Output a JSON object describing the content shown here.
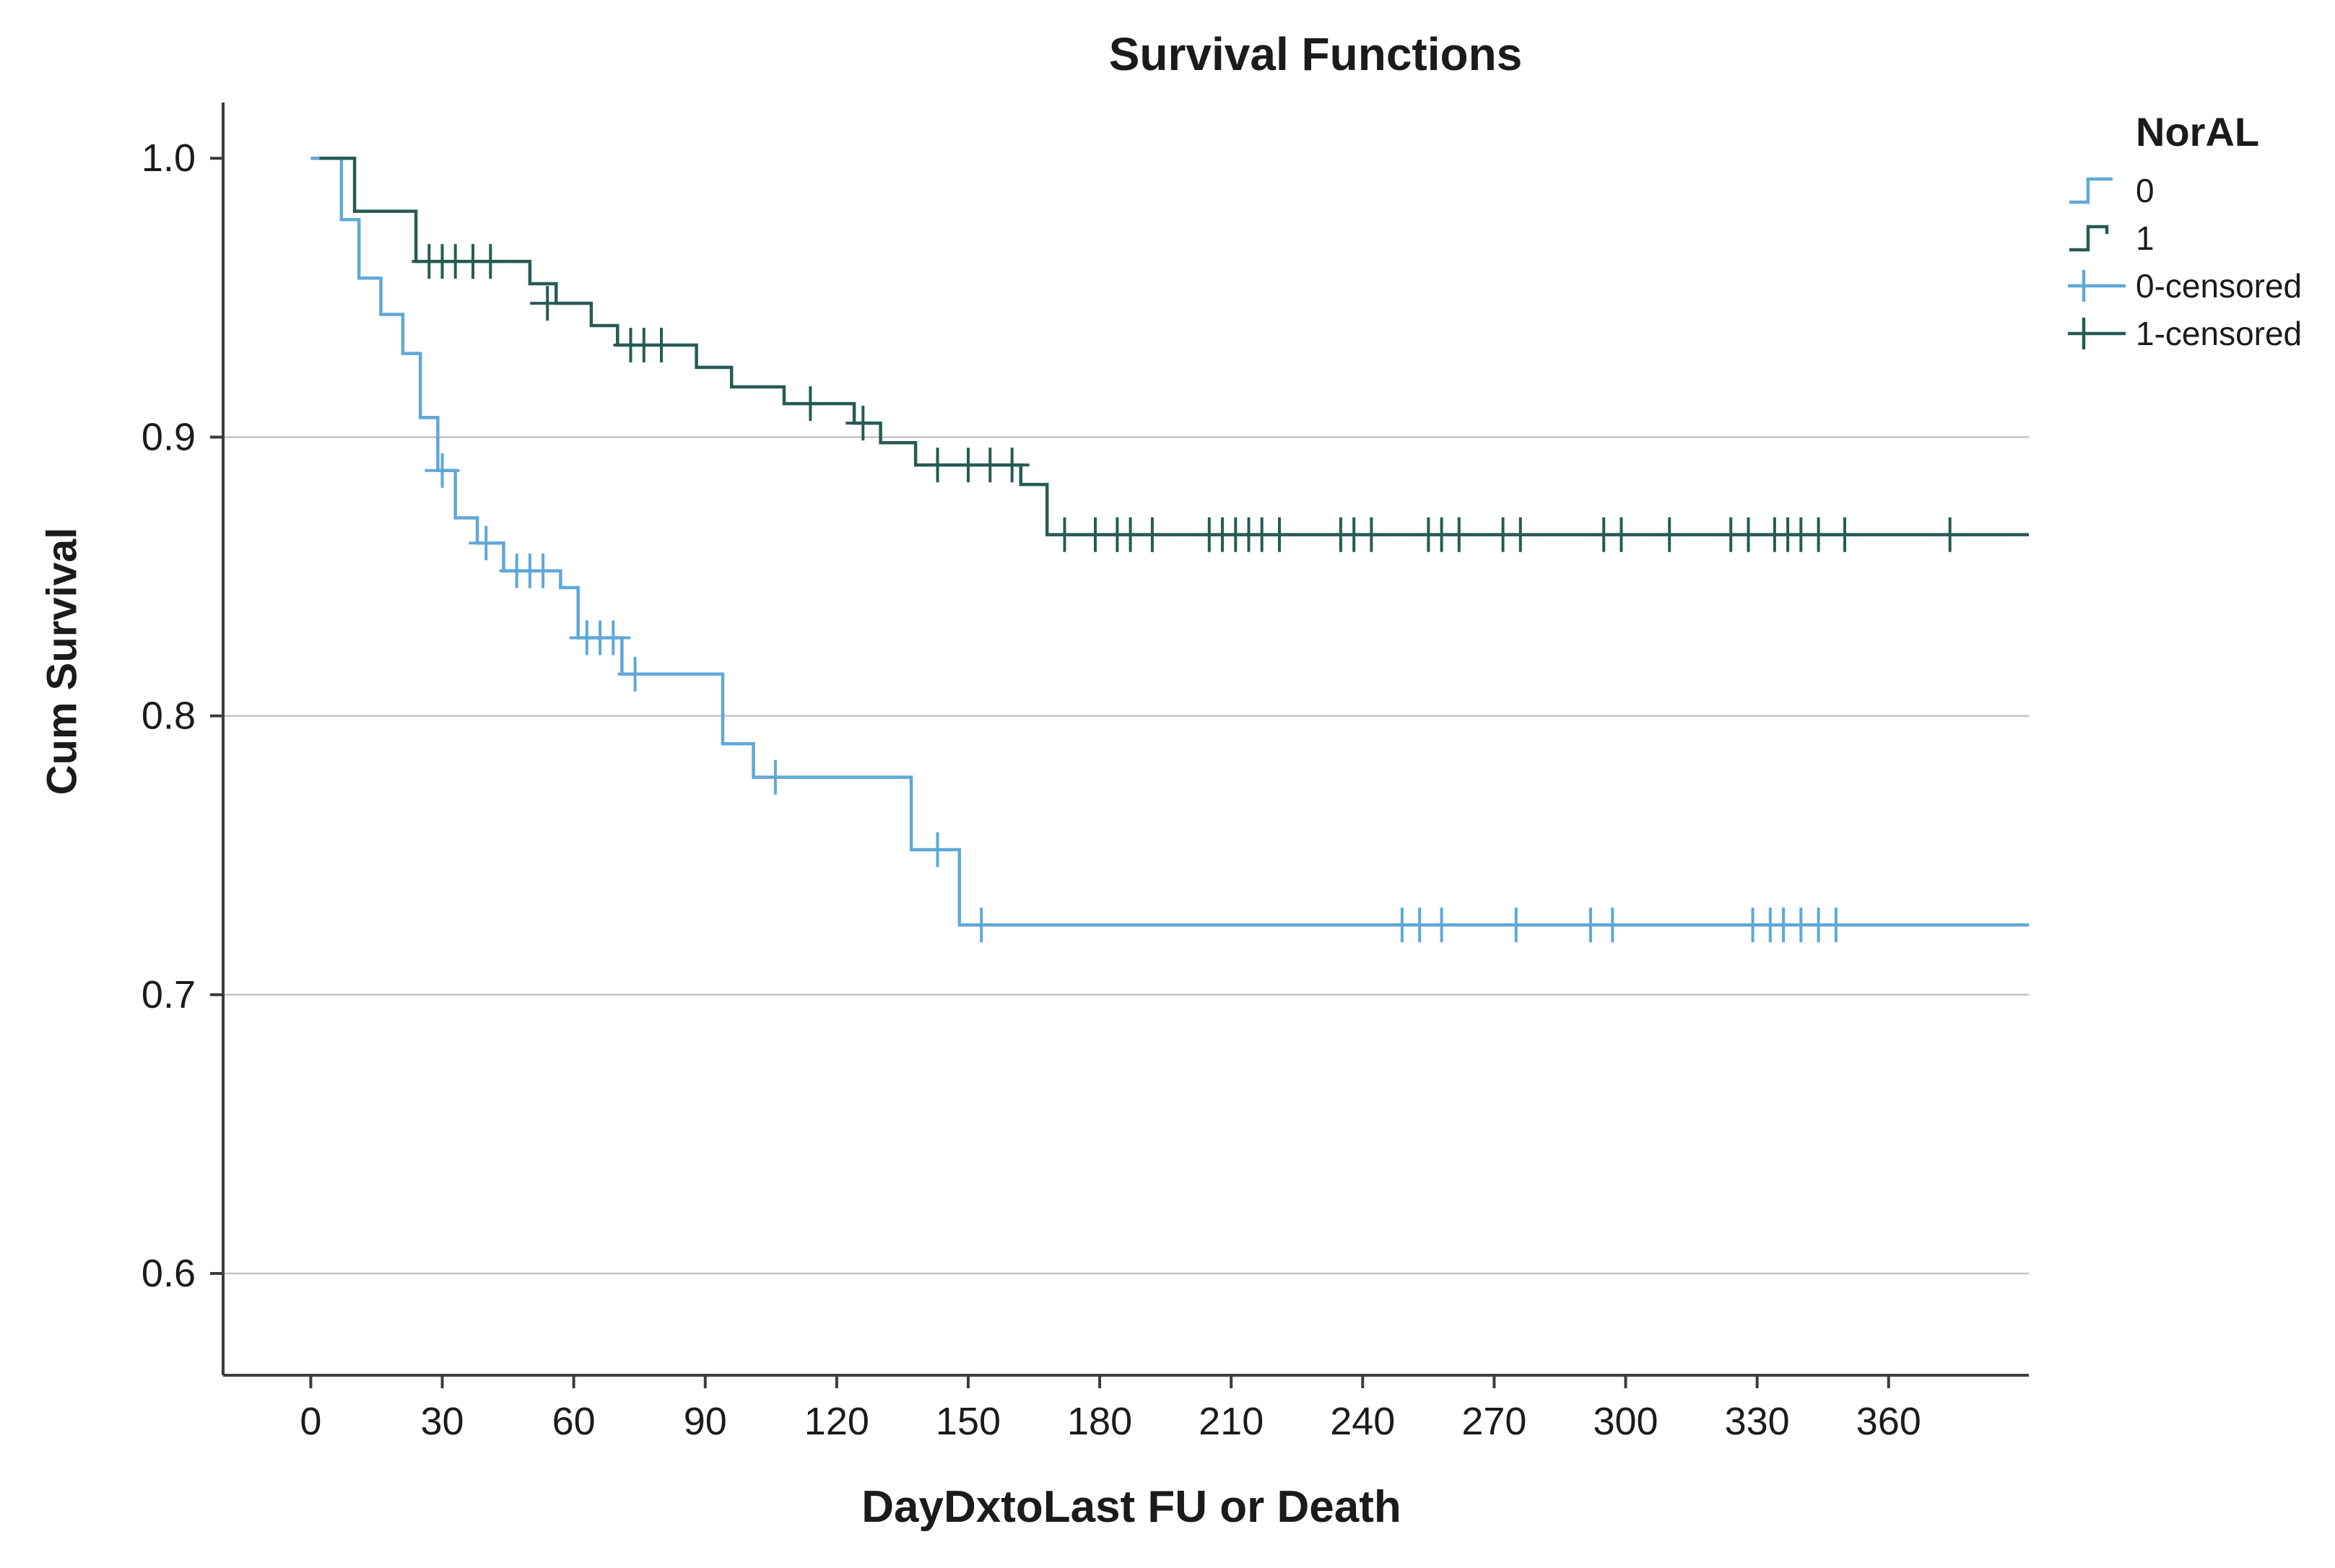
{
  "chart_data": {
    "type": "line",
    "subtype": "kaplan-meier-step-survival",
    "title": "Survival Functions",
    "xlabel": "DayDxtoLast FU or Death",
    "ylabel": "Cum Survival",
    "grid": "horizontal gridlines only",
    "x_domain": [
      -20,
      392
    ],
    "y_domain": [
      0.5635,
      1.02
    ],
    "x_ticks": [
      0,
      30,
      60,
      90,
      120,
      150,
      180,
      210,
      240,
      270,
      300,
      330,
      360
    ],
    "x_tick_labels": [
      "0",
      "30",
      "60",
      "90",
      "120",
      "150",
      "180",
      "210",
      "240",
      "270",
      "300",
      "330",
      "360"
    ],
    "y_ticks": [
      1.0,
      0.9,
      0.8,
      0.7,
      0.6
    ],
    "y_tick_labels": [
      "1.0",
      "0.9",
      "0.8",
      "0.7",
      "0.6"
    ],
    "gridlines_y": [
      0.9,
      0.8,
      0.7,
      0.6
    ],
    "legend": {
      "title": "NorAL",
      "position": "top-right outside plot",
      "entries": [
        {
          "label": "0",
          "series": "0",
          "glyph": "step-line"
        },
        {
          "label": "1",
          "series": "1",
          "glyph": "step-line"
        },
        {
          "label": "0-censored",
          "series": "0",
          "glyph": "plus-on-line"
        },
        {
          "label": "1-censored",
          "series": "1",
          "glyph": "plus-on-line"
        }
      ]
    },
    "series": [
      {
        "name": "0",
        "color": "#5fa8d8",
        "points": [
          [
            0,
            1.0
          ],
          [
            7,
            1.0
          ],
          [
            7,
            0.978
          ],
          [
            11,
            0.978
          ],
          [
            11,
            0.957
          ],
          [
            16,
            0.957
          ],
          [
            16,
            0.944
          ],
          [
            21,
            0.944
          ],
          [
            21,
            0.93
          ],
          [
            25,
            0.93
          ],
          [
            25,
            0.907
          ],
          [
            29,
            0.907
          ],
          [
            29,
            0.888
          ],
          [
            33,
            0.888
          ],
          [
            33,
            0.871
          ],
          [
            38,
            0.871
          ],
          [
            38,
            0.862
          ],
          [
            44,
            0.862
          ],
          [
            44,
            0.852
          ],
          [
            57,
            0.852
          ],
          [
            57,
            0.846
          ],
          [
            61,
            0.846
          ],
          [
            61,
            0.828
          ],
          [
            71,
            0.828
          ],
          [
            71,
            0.815
          ],
          [
            94,
            0.815
          ],
          [
            94,
            0.79
          ],
          [
            101,
            0.79
          ],
          [
            101,
            0.778
          ],
          [
            137,
            0.778
          ],
          [
            137,
            0.752
          ],
          [
            148,
            0.752
          ],
          [
            148,
            0.725
          ],
          [
            392,
            0.725
          ]
        ],
        "censored": [
          [
            30,
            0.888
          ],
          [
            40,
            0.862
          ],
          [
            47,
            0.852
          ],
          [
            50,
            0.852
          ],
          [
            53,
            0.852
          ],
          [
            63,
            0.828
          ],
          [
            66,
            0.828
          ],
          [
            69,
            0.828
          ],
          [
            74,
            0.815
          ],
          [
            106,
            0.778
          ],
          [
            143,
            0.752
          ],
          [
            153,
            0.725
          ],
          [
            249,
            0.725
          ],
          [
            253,
            0.725
          ],
          [
            258,
            0.725
          ],
          [
            275,
            0.725
          ],
          [
            292,
            0.725
          ],
          [
            297,
            0.725
          ],
          [
            329,
            0.725
          ],
          [
            333,
            0.725
          ],
          [
            336,
            0.725
          ],
          [
            340,
            0.725
          ],
          [
            344,
            0.725
          ],
          [
            348,
            0.725
          ]
        ]
      },
      {
        "name": "1",
        "color": "#265b54",
        "points": [
          [
            2,
            1.0
          ],
          [
            10,
            1.0
          ],
          [
            10,
            0.981
          ],
          [
            24,
            0.981
          ],
          [
            24,
            0.963
          ],
          [
            50,
            0.963
          ],
          [
            50,
            0.955
          ],
          [
            56,
            0.955
          ],
          [
            56,
            0.948
          ],
          [
            64,
            0.948
          ],
          [
            64,
            0.94
          ],
          [
            70,
            0.94
          ],
          [
            70,
            0.933
          ],
          [
            88,
            0.933
          ],
          [
            88,
            0.925
          ],
          [
            96,
            0.925
          ],
          [
            96,
            0.918
          ],
          [
            108,
            0.918
          ],
          [
            108,
            0.912
          ],
          [
            124,
            0.912
          ],
          [
            124,
            0.905
          ],
          [
            130,
            0.905
          ],
          [
            130,
            0.898
          ],
          [
            138,
            0.898
          ],
          [
            138,
            0.89
          ],
          [
            162,
            0.89
          ],
          [
            162,
            0.883
          ],
          [
            168,
            0.883
          ],
          [
            168,
            0.865
          ],
          [
            392,
            0.865
          ]
        ],
        "censored": [
          [
            27,
            0.963
          ],
          [
            30,
            0.963
          ],
          [
            33,
            0.963
          ],
          [
            37,
            0.963
          ],
          [
            41,
            0.963
          ],
          [
            54,
            0.948
          ],
          [
            73,
            0.933
          ],
          [
            76,
            0.933
          ],
          [
            80,
            0.933
          ],
          [
            114,
            0.912
          ],
          [
            126,
            0.905
          ],
          [
            143,
            0.89
          ],
          [
            150,
            0.89
          ],
          [
            155,
            0.89
          ],
          [
            160,
            0.89
          ],
          [
            172,
            0.865
          ],
          [
            179,
            0.865
          ],
          [
            184,
            0.865
          ],
          [
            187,
            0.865
          ],
          [
            192,
            0.865
          ],
          [
            205,
            0.865
          ],
          [
            208,
            0.865
          ],
          [
            211,
            0.865
          ],
          [
            214,
            0.865
          ],
          [
            217,
            0.865
          ],
          [
            221,
            0.865
          ],
          [
            235,
            0.865
          ],
          [
            238,
            0.865
          ],
          [
            242,
            0.865
          ],
          [
            255,
            0.865
          ],
          [
            258,
            0.865
          ],
          [
            262,
            0.865
          ],
          [
            272,
            0.865
          ],
          [
            276,
            0.865
          ],
          [
            295,
            0.865
          ],
          [
            299,
            0.865
          ],
          [
            310,
            0.865
          ],
          [
            324,
            0.865
          ],
          [
            328,
            0.865
          ],
          [
            334,
            0.865
          ],
          [
            337,
            0.865
          ],
          [
            340,
            0.865
          ],
          [
            344,
            0.865
          ],
          [
            350,
            0.865
          ],
          [
            374,
            0.865
          ]
        ]
      }
    ],
    "colors": {
      "axis": "#3c3c3c",
      "gridline": "#c3c3c3",
      "text": "#1b1b1b",
      "background": "#ffffff"
    }
  }
}
